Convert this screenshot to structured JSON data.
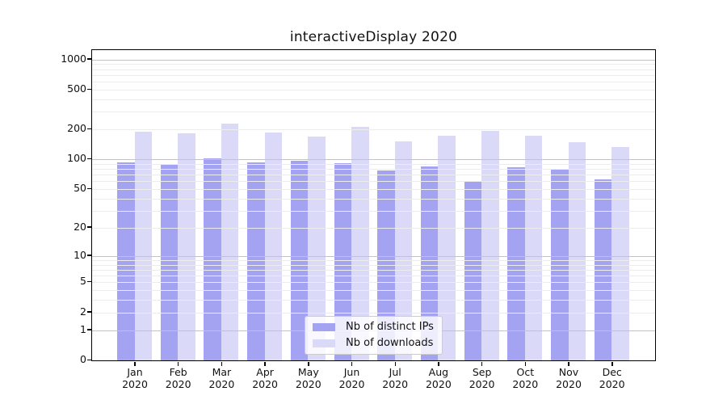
{
  "title": "interactiveDisplay 2020",
  "chart_data": {
    "type": "bar",
    "title": "interactiveDisplay 2020",
    "categories": [
      "Jan 2020",
      "Feb 2020",
      "Mar 2020",
      "Apr 2020",
      "May 2020",
      "Jun 2020",
      "Jul 2020",
      "Aug 2020",
      "Sep 2020",
      "Oct 2020",
      "Nov 2020",
      "Dec 2020"
    ],
    "series": [
      {
        "name": "Nb of distinct IPs",
        "key": "distinct-ips",
        "color": "#a3a3f1",
        "values": [
          93,
          90,
          102,
          93,
          96,
          92,
          78,
          85,
          59,
          84,
          81,
          63
        ]
      },
      {
        "name": "Nb of downloads",
        "key": "downloads",
        "color": "#dadaf8",
        "values": [
          190,
          182,
          228,
          186,
          169,
          213,
          151,
          172,
          195,
          173,
          148,
          133
        ]
      }
    ],
    "xlabel": "",
    "ylabel": "",
    "y_scale": "log1p",
    "y_ticks": [
      0,
      1,
      2,
      5,
      10,
      20,
      50,
      100,
      200,
      500,
      1000
    ],
    "grid_major_levels": [
      1,
      10,
      100,
      1000
    ],
    "grid_minor_steps": [
      2,
      3,
      4,
      5,
      6,
      7,
      8,
      9
    ],
    "ylim": [
      0,
      1260
    ],
    "grid": "on",
    "legend_position": "lower center",
    "colors": {
      "bar_dark": "#a3a3f1",
      "bar_light": "#dadaf8",
      "grid_major": "#c3c3c3",
      "grid_minor": "#ececec",
      "frame": "#000000",
      "text": "#111111"
    }
  }
}
